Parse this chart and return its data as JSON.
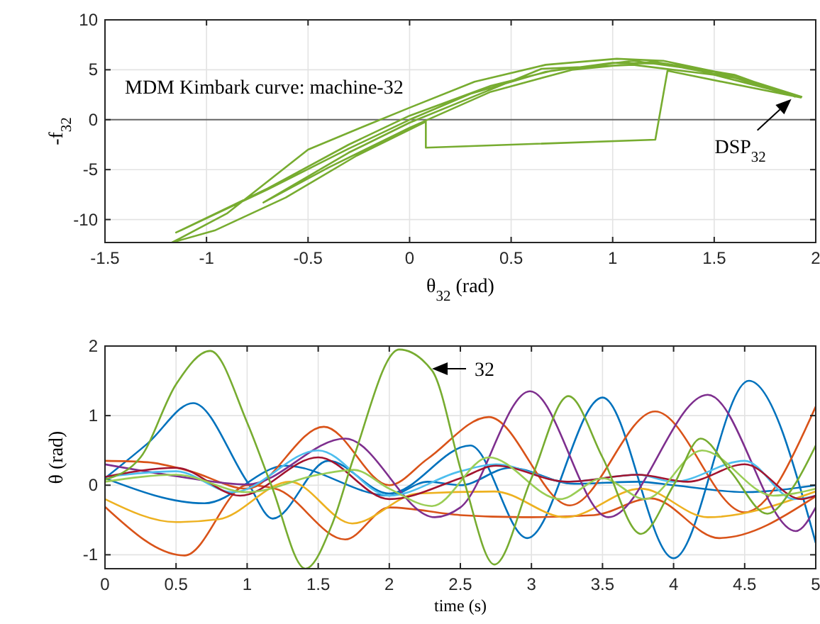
{
  "chart_data": [
    {
      "type": "line",
      "xlabel": "θ$_{32}$ (rad)",
      "ylabel": "-f$_{32}$",
      "xlim": [
        -1.5,
        2
      ],
      "ylim": [
        -12.3,
        10
      ],
      "xticks": [
        -1.5,
        -1,
        -0.5,
        0,
        0.5,
        1,
        1.5,
        2
      ],
      "yticks": [
        -10,
        -5,
        0,
        5,
        10
      ],
      "grid": true,
      "ref_lines": [
        {
          "axis": "y",
          "value": 0,
          "color": "#666666"
        }
      ],
      "annotations": [
        "MDM Kimbark curve: machine-32",
        {
          "text": "DSP$_{32}$",
          "x": 1.88,
          "y": 2.07
        }
      ],
      "series": [
        {
          "color": "#77ac30",
          "x": [
            1.93,
            1.27,
            1.21,
            0.08,
            0.08,
            -0.26,
            -0.61,
            -0.96,
            -1.17,
            -0.9,
            -0.5,
            -0.24,
            0,
            0.32,
            0.67,
            1.02,
            1.25,
            1.6,
            1.93,
            1.6,
            1.25,
            1.0,
            0.67,
            0.3,
            0,
            -0.3,
            -0.7,
            -1.15,
            -0.7,
            -0.3,
            0,
            0.4,
            0.7,
            1.1,
            1.5,
            1.9,
            1.5,
            1.1,
            0.65,
            0.3,
            0,
            -0.3,
            -0.72,
            -0.4,
            0,
            0.4,
            0.8,
            1.2,
            1.6,
            1.9
          ],
          "values": [
            2.2,
            4.9,
            -2.0,
            -2.8,
            -0.2,
            -3.6,
            -7.8,
            -11.1,
            -12.3,
            -9.4,
            -3.0,
            -0.8,
            1.2,
            3.8,
            5.5,
            6.1,
            5.9,
            4.4,
            2.3,
            4.2,
            5.6,
            5.7,
            4.8,
            2.6,
            0,
            -2.9,
            -7.0,
            -11.3,
            -6.9,
            -2.5,
            0.4,
            3.4,
            4.9,
            5.9,
            4.8,
            2.4,
            4.5,
            5.5,
            5.1,
            2.2,
            -0.3,
            -3.3,
            -8.3,
            -4.8,
            -0.8,
            2.8,
            5.0,
            5.8,
            4.5,
            2.3
          ]
        }
      ]
    },
    {
      "type": "line",
      "xlabel": "time (s)",
      "ylabel": "θ (rad)",
      "xlim": [
        0,
        5
      ],
      "ylim": [
        -1.2,
        2
      ],
      "xticks": [
        0,
        0.5,
        1,
        1.5,
        2,
        2.5,
        3,
        3.5,
        4,
        4.5,
        5
      ],
      "yticks": [
        -1,
        0,
        1,
        2
      ],
      "grid": true,
      "annotations": [
        "32"
      ],
      "series": [
        {
          "color": "#0072bd",
          "x": [
            0,
            0.3,
            0.62,
            1.0,
            1.18,
            1.57,
            2.0,
            2.57,
            2.97,
            3.5,
            4.0,
            4.53,
            5
          ],
          "values": [
            0.1,
            0.6,
            1.18,
            0.05,
            -0.48,
            0.35,
            -0.12,
            0.57,
            -0.76,
            1.26,
            -1.05,
            1.5,
            -0.83
          ]
        },
        {
          "color": "#0072bd",
          "x": [
            0,
            0.7,
            1.27,
            2.0,
            2.27,
            2.5,
            2.85,
            3.3,
            3.75,
            4.0,
            4.5,
            5
          ],
          "values": [
            0.1,
            -0.26,
            0.28,
            -0.15,
            0.05,
            0.0,
            0.25,
            0.02,
            0.05,
            0.0,
            -0.1,
            0.0
          ]
        },
        {
          "color": "#d95319",
          "x": [
            0,
            0.3,
            0.6,
            1.0,
            1.54,
            2.0,
            2.27,
            2.7,
            3.27,
            3.87,
            4.5,
            5
          ],
          "values": [
            0.35,
            0.33,
            0.2,
            -0.05,
            0.84,
            0.0,
            0.38,
            0.98,
            -0.29,
            1.06,
            -0.39,
            1.13
          ]
        },
        {
          "color": "#d95319",
          "x": [
            0,
            0.56,
            1.0,
            1.2,
            1.69,
            2.0,
            2.5,
            2.94,
            3.44,
            3.84,
            4.32,
            5
          ],
          "values": [
            -0.31,
            -1.01,
            0.0,
            -0.05,
            -0.78,
            -0.32,
            -0.43,
            -0.46,
            -0.43,
            -0.19,
            -0.76,
            -0.16
          ]
        },
        {
          "color": "#edb120",
          "x": [
            0,
            0.5,
            0.8,
            1.3,
            1.74,
            2.2,
            2.74,
            3.24,
            3.77,
            4.24,
            5
          ],
          "values": [
            -0.2,
            -0.53,
            -0.49,
            0.05,
            -0.55,
            -0.12,
            -0.09,
            -0.46,
            -0.05,
            -0.46,
            -0.09
          ]
        },
        {
          "color": "#7e2f8e",
          "x": [
            0,
            0.5,
            1.0,
            1.69,
            2.32,
            2.5,
            2.99,
            3.54,
            4.24,
            4.86,
            5
          ],
          "values": [
            0.3,
            0.13,
            0.01,
            0.67,
            -0.46,
            -0.32,
            1.35,
            -0.46,
            1.3,
            -0.66,
            -0.32
          ]
        },
        {
          "color": "#4dbeee",
          "x": [
            0,
            0.5,
            0.9,
            1.5,
            2.0,
            2.5,
            2.75,
            3.25,
            3.75,
            4.0,
            4.5,
            4.85,
            5
          ],
          "values": [
            0.12,
            0.2,
            -0.1,
            0.5,
            -0.15,
            0.2,
            0.3,
            0.05,
            0.15,
            0.05,
            0.35,
            -0.2,
            -0.15
          ]
        },
        {
          "color": "#a2142f",
          "x": [
            0,
            0.5,
            0.95,
            1.5,
            2.0,
            2.5,
            2.75,
            3.25,
            3.75,
            4.1,
            4.5,
            4.9,
            5
          ],
          "values": [
            0.12,
            0.25,
            -0.15,
            0.4,
            -0.2,
            0.1,
            0.28,
            0.05,
            0.15,
            0.05,
            0.3,
            -0.2,
            -0.15
          ]
        },
        {
          "color": "#9acd55",
          "x": [
            0,
            0.5,
            1.0,
            1.5,
            1.75,
            2.0,
            2.3,
            2.7,
            3.2,
            3.5,
            3.8,
            4.2,
            4.7,
            5
          ],
          "values": [
            0.05,
            0.15,
            -0.1,
            0.15,
            0.22,
            -0.05,
            -0.3,
            0.4,
            -0.2,
            0.1,
            -0.2,
            0.5,
            -0.15,
            -0.05
          ]
        },
        {
          "color": "#77ac30",
          "x": [
            0,
            0.25,
            0.5,
            0.74,
            1.0,
            1.17,
            1.41,
            1.6,
            1.75,
            2.07,
            2.3,
            2.52,
            2.74,
            3.0,
            3.26,
            3.5,
            3.77,
            4.0,
            4.19,
            4.4,
            4.66,
            4.85,
            5
          ],
          "values": [
            0.08,
            0.4,
            1.45,
            1.93,
            0.9,
            0.0,
            -1.2,
            -0.55,
            0.4,
            1.95,
            1.65,
            0.1,
            -1.14,
            0.1,
            1.28,
            0.4,
            -0.7,
            0.0,
            0.67,
            0.2,
            -0.41,
            0.0,
            0.57
          ]
        }
      ]
    }
  ]
}
